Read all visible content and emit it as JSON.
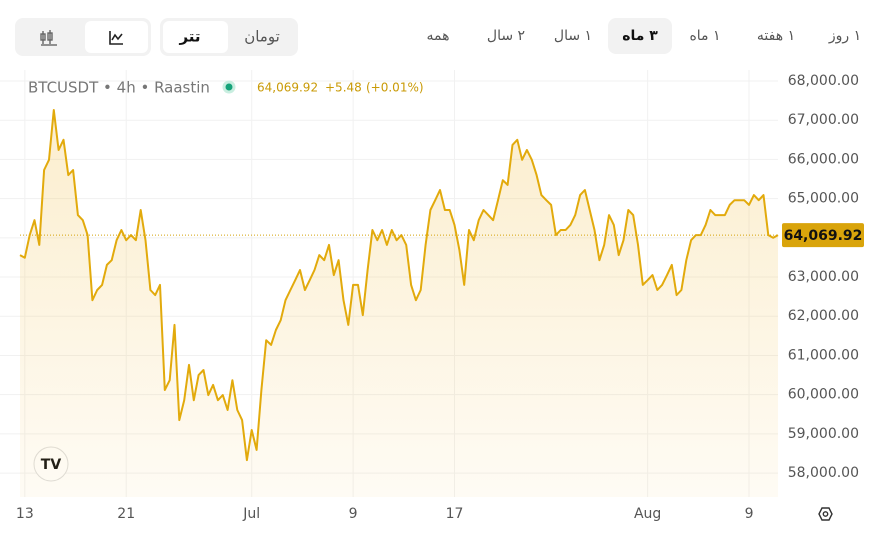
{
  "toolbar": {
    "ranges": [
      "۱ روز",
      "۱ هفته",
      "۱ ماه",
      "۳ ماه",
      "۱ سال",
      "۲ سال",
      "همه"
    ],
    "selected_range": "۳ ماه",
    "currencies": [
      "تتر",
      "تومان"
    ],
    "selected_currency": "تتر"
  },
  "chart_data": {
    "type": "line",
    "legend_change": "+5.48",
    "legend_change_pct": "(+0.01%)",
    "last_price": {
      "value": 64069.92,
      "label": "64,069.92"
    },
    "categories": [
      null,
      "13",
      null,
      null,
      null,
      null,
      null,
      null,
      null,
      null,
      null,
      null,
      null,
      null,
      null,
      null,
      null,
      null,
      null,
      null,
      null,
      null,
      "21",
      null,
      null,
      null,
      null,
      null,
      null,
      null,
      null,
      null,
      null,
      null,
      null,
      null,
      null,
      null,
      null,
      null,
      null,
      null,
      null,
      null,
      null,
      null,
      null,
      null,
      "Jul",
      null,
      null,
      null,
      null,
      null,
      null,
      null,
      null,
      null,
      null,
      null,
      null,
      null,
      null,
      null,
      null,
      null,
      null,
      null,
      null,
      "9",
      null,
      null,
      null,
      null,
      null,
      null,
      null,
      null,
      null,
      null,
      null,
      null,
      null,
      null,
      null,
      null,
      null,
      null,
      null,
      null,
      "17",
      null,
      null,
      null,
      null,
      null,
      null,
      null,
      null,
      null,
      null,
      null,
      null,
      null,
      null,
      null,
      null,
      null,
      null,
      null,
      null,
      null,
      null,
      null,
      null,
      null,
      null,
      null,
      null,
      null,
      null,
      null,
      null,
      null,
      null,
      null,
      null,
      null,
      null,
      null,
      "Aug",
      null,
      null,
      null,
      null,
      null,
      null,
      null,
      null,
      null,
      null,
      null,
      null,
      null,
      null,
      null,
      null,
      null,
      null,
      null,
      null,
      "9",
      null,
      null,
      null,
      null,
      null,
      null
    ],
    "series": [
      {
        "name": "BTCUSDT • 4h • Raastin",
        "color": "#e2aa0c",
        "values": [
          63560,
          63490,
          64070,
          64450,
          63820,
          65730,
          65990,
          67260,
          66240,
          66500,
          65600,
          65730,
          64580,
          64450,
          64070,
          62410,
          62670,
          62800,
          63310,
          63430,
          63940,
          64200,
          63940,
          64070,
          63940,
          64710,
          63940,
          62670,
          62540,
          62800,
          60120,
          60370,
          61780,
          59350,
          59860,
          60760,
          59860,
          60500,
          60630,
          59990,
          60250,
          59860,
          59990,
          59610,
          60370,
          59610,
          59350,
          58330,
          59100,
          58590,
          60120,
          61390,
          61270,
          61650,
          61900,
          62410,
          62670,
          62920,
          63180,
          62670,
          62920,
          63180,
          63560,
          63430,
          63820,
          63050,
          63430,
          62410,
          61780,
          62800,
          62800,
          62030,
          63180,
          64200,
          63940,
          64200,
          63820,
          64200,
          63940,
          64070,
          63820,
          62800,
          62410,
          62670,
          63820,
          64710,
          64960,
          65220,
          64710,
          64710,
          64330,
          63690,
          62800,
          64200,
          63940,
          64450,
          64710,
          64580,
          64450,
          64960,
          65470,
          65350,
          66370,
          66500,
          65990,
          66240,
          65990,
          65600,
          65090,
          64960,
          64840,
          64070,
          64200,
          64200,
          64330,
          64580,
          65090,
          65220,
          64710,
          64200,
          63430,
          63820,
          64580,
          64330,
          63560,
          63940,
          64710,
          64580,
          63820,
          62800,
          62920,
          63050,
          62670,
          62800,
          63050,
          63310,
          62540,
          62670,
          63430,
          63940,
          64070,
          64070,
          64330,
          64710,
          64580,
          64580,
          64580,
          64840,
          64960,
          64960,
          64960,
          64840,
          65090,
          64960,
          65090,
          64070,
          64000,
          64069.92
        ]
      }
    ],
    "ylim": [
      57390,
      68280
    ],
    "yticks": [
      {
        "value": 58000,
        "label": "58,000.00"
      },
      {
        "value": 59000,
        "label": "59,000.00"
      },
      {
        "value": 60000,
        "label": "60,000.00"
      },
      {
        "value": 61000,
        "label": "61,000.00"
      },
      {
        "value": 62000,
        "label": "62,000.00"
      },
      {
        "value": 63000,
        "label": "63,000.00"
      },
      {
        "value": 64000,
        "label": "64,000.00"
      },
      {
        "value": 65000,
        "label": "65,000.00"
      },
      {
        "value": 66000,
        "label": "66,000.00"
      },
      {
        "value": 67000,
        "label": "67,000.00"
      },
      {
        "value": 68000,
        "label": "68,000.00"
      }
    ],
    "grid": true
  }
}
